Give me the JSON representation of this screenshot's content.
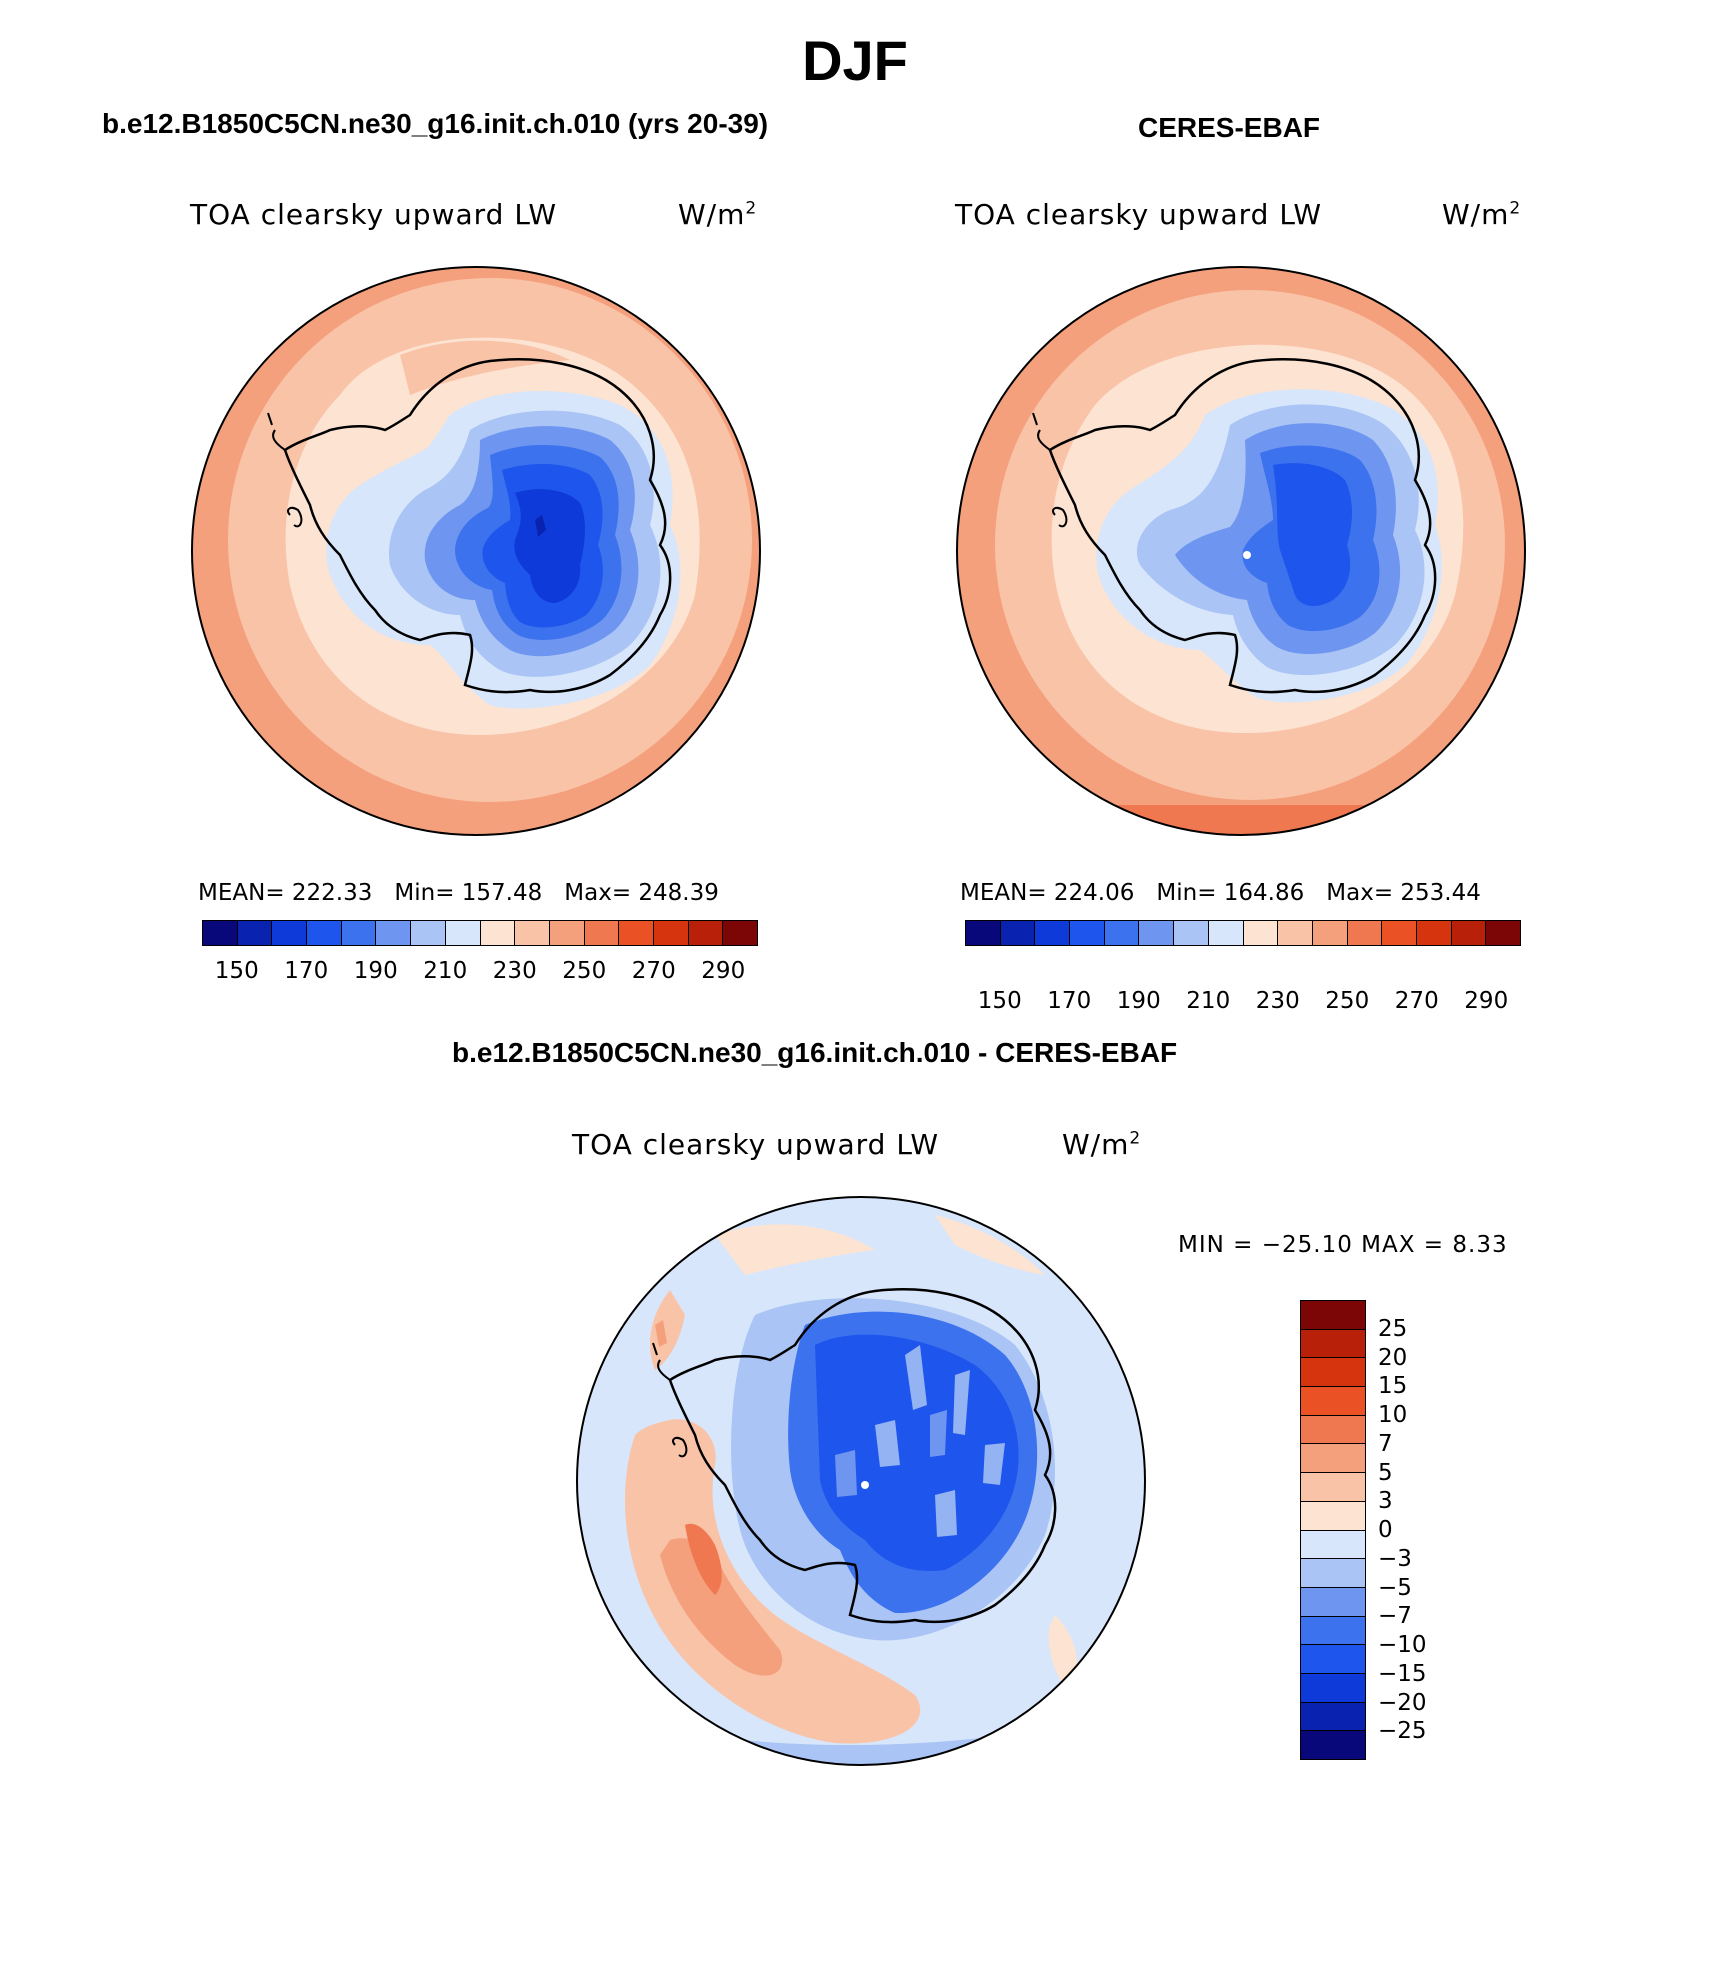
{
  "season": "DJF",
  "panels": {
    "model": {
      "title": "b.e12.B1850C5CN.ne30_g16.init.ch.010 (yrs 20-39)",
      "variable": "TOA clearsky upward LW",
      "units_base": "W/m",
      "units_exp": "2",
      "mean_label": "MEAN= 222.33",
      "min_label": "Min= 157.48",
      "max_label": "Max= 248.39"
    },
    "obs": {
      "title": "CERES-EBAF",
      "variable": "TOA clearsky upward LW",
      "units_base": "W/m",
      "units_exp": "2",
      "mean_label": "MEAN= 224.06",
      "min_label": "Min= 164.86",
      "max_label": "Max= 253.44"
    },
    "diff": {
      "title": "b.e12.B1850C5CN.ne30_g16.init.ch.010 - CERES-EBAF",
      "variable": "TOA clearsky upward LW",
      "units_base": "W/m",
      "units_exp": "2",
      "minmax_label": "MIN = −25.10 MAX =   8.33"
    }
  },
  "abs_colorbar": {
    "colors": [
      "#08087a",
      "#0a22b0",
      "#0d3ad8",
      "#1e55ec",
      "#3c72ee",
      "#6e95f0",
      "#a9c4f5",
      "#d7e6fa",
      "#fde3d2",
      "#f9c3a8",
      "#f5a07c",
      "#f07850",
      "#ea5226",
      "#d6340f",
      "#b8200a",
      "#7c0606"
    ],
    "tick_labels": [
      "150",
      "170",
      "190",
      "210",
      "230",
      "250",
      "270",
      "290"
    ]
  },
  "diff_colorbar": {
    "colors": [
      "#7c0606",
      "#b8200a",
      "#d6340f",
      "#ea5226",
      "#f07850",
      "#f5a07c",
      "#f9c3a8",
      "#fde3d2",
      "#d7e6fa",
      "#a9c4f5",
      "#6e95f0",
      "#3c72ee",
      "#1e55ec",
      "#0d3ad8",
      "#0a22b0",
      "#08087a"
    ],
    "tick_labels": [
      "25",
      "20",
      "15",
      "10",
      "7",
      "5",
      "3",
      "0",
      "−3",
      "−5",
      "−7",
      "−10",
      "−15",
      "−20",
      "−25"
    ]
  }
}
